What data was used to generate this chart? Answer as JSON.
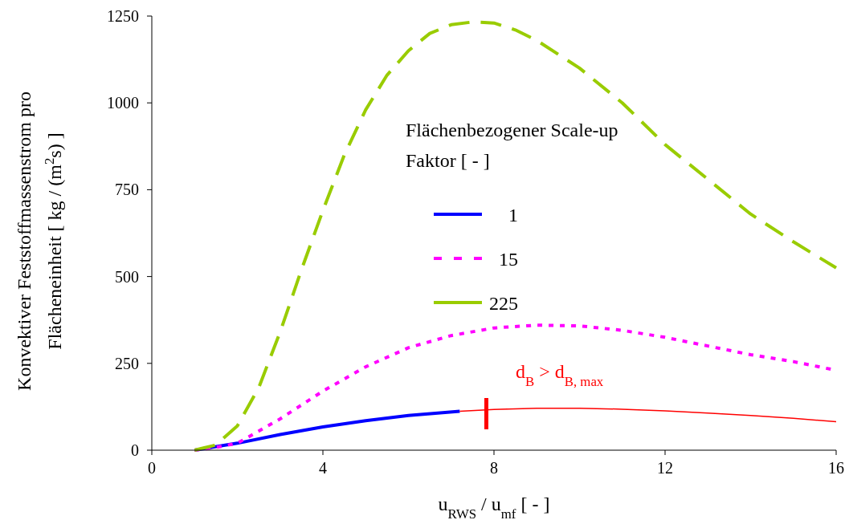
{
  "chart_data": {
    "type": "line",
    "xlabel": "u$_{RWS}$ / u$_{mf}$ [ - ]",
    "ylabel": "Konvektiver Feststoffmassenstrom pro Flächeneinheit [ kg / (m$^{2}$s) ]",
    "legend_title": "Flächenbezogener Scale-up Faktor [ - ]",
    "legend": "bottom left",
    "grid": false,
    "xlim": [
      0,
      16
    ],
    "xticks": [
      0,
      4,
      8,
      12,
      16
    ],
    "ylim": [
      0,
      1250
    ],
    "yticks": [
      0,
      250,
      500,
      750,
      1000,
      1250
    ],
    "series": [
      {
        "name": "1",
        "color": "#0000ff",
        "line_style": "solid",
        "x": [
          1,
          2,
          3,
          4,
          5,
          6,
          7.2
        ],
        "values": [
          0,
          20,
          45,
          67,
          85,
          100,
          112
        ]
      },
      {
        "name": "15",
        "color": "#ff00ff",
        "line_style": "dotted",
        "x": [
          1,
          1.5,
          2,
          3,
          4,
          5,
          6,
          7,
          8,
          9,
          10,
          11,
          12,
          13,
          14,
          15,
          16
        ],
        "values": [
          0,
          8,
          20,
          90,
          170,
          240,
          295,
          330,
          352,
          360,
          358,
          345,
          325,
          300,
          275,
          255,
          230
        ]
      },
      {
        "name": "225",
        "color": "#99cc00",
        "line_style": "dashed",
        "x": [
          1,
          1.5,
          2,
          2.5,
          3,
          3.5,
          4,
          4.5,
          5,
          5.5,
          6,
          6.5,
          7,
          7.5,
          8,
          8.5,
          9,
          10,
          11,
          12,
          13,
          14,
          15,
          16
        ],
        "values": [
          0,
          15,
          70,
          180,
          340,
          520,
          690,
          850,
          980,
          1080,
          1150,
          1200,
          1225,
          1233,
          1230,
          1210,
          1180,
          1100,
          1000,
          880,
          780,
          680,
          600,
          525
        ]
      },
      {
        "color": "#ff0000",
        "line_style": "solid",
        "x": [
          7.2,
          8,
          9,
          10,
          11,
          12,
          13,
          14,
          15,
          16
        ],
        "values": [
          112,
          117,
          121,
          121,
          118,
          113,
          107,
          100,
          92,
          82
        ]
      }
    ],
    "annotations": [
      "d$_{B}$ > d$_{B, max}$"
    ]
  }
}
